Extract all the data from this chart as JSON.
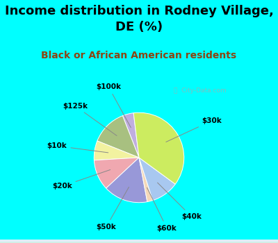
{
  "title": "Income distribution in Rodney Village,\nDE (%)",
  "subtitle": "Black or African American residents",
  "labels": [
    "$100k",
    "$125k",
    "$10k",
    "$20k",
    "$50k",
    "$60k",
    "$40k",
    "$30k"
  ],
  "values": [
    4,
    13,
    7,
    11,
    16,
    2,
    10,
    37
  ],
  "colors": [
    "#c0aee0",
    "#a8c080",
    "#f2f2a0",
    "#f0a8b0",
    "#9898d8",
    "#f5d8b8",
    "#a8c8f0",
    "#ccec60"
  ],
  "bg_color": "#00ffff",
  "chart_bg_color1": "#cceedd",
  "chart_bg_color2": "#ddeef8",
  "title_fontsize": 13,
  "subtitle_fontsize": 10,
  "subtitle_color": "#8b4513",
  "label_fontsize": 7.5,
  "watermark": "City-Data.com",
  "startangle": 97
}
